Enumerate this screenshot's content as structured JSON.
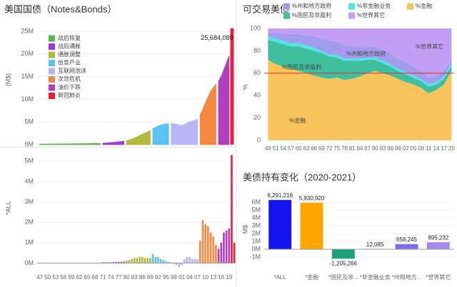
{
  "chart_data": [
    {
      "type": "area",
      "title": "美国国债（Notes&Bonds）",
      "y_label": "(M$)",
      "xlim": [
        1946,
        2021.5
      ],
      "ylim": [
        0,
        27200000
      ],
      "yticks": [
        {
          "value": 0,
          "label": "0M"
        },
        {
          "value": 5000000,
          "label": "5M"
        },
        {
          "value": 10000000,
          "label": "10M"
        },
        {
          "value": 15000000,
          "label": "15M"
        },
        {
          "value": 20000000,
          "label": "20M"
        },
        {
          "value": 25000000,
          "label": "25M"
        }
      ],
      "grid": true,
      "legend": "upper left",
      "series": [
        {
          "name": "战后恢复",
          "color": "#58b84a",
          "x": [
            1947,
            1948,
            1949,
            1950,
            1951,
            1952,
            1953,
            1954,
            1955,
            1956,
            1957,
            1958,
            1959,
            1960,
            1961,
            1962,
            1963,
            1964,
            1965,
            1966,
            1967,
            1968,
            1969,
            1970
          ],
          "values": [
            100000,
            105000,
            110000,
            115000,
            120000,
            125000,
            130000,
            135000,
            140000,
            145000,
            150000,
            155000,
            160000,
            170000,
            175000,
            180000,
            190000,
            200000,
            205000,
            210000,
            220000,
            230000,
            245000,
            260000
          ]
        },
        {
          "name": "战后通胀",
          "color": "#a03ad6",
          "x": [
            1971,
            1972,
            1973,
            1974,
            1975,
            1976,
            1977,
            1978,
            1979
          ],
          "values": [
            300000,
            340000,
            380000,
            420000,
            470000,
            530000,
            590000,
            650000,
            720000
          ]
        },
        {
          "name": "通胀调整",
          "color": "#b5b83e",
          "x": [
            1980,
            1981,
            1982,
            1983,
            1984,
            1985,
            1986,
            1987,
            1988,
            1989
          ],
          "values": [
            850000,
            1000000,
            1200000,
            1450000,
            1700000,
            2000000,
            2300000,
            2550000,
            2800000,
            3050000
          ]
        },
        {
          "name": "信息产业",
          "color": "#5cc3f0",
          "x": [
            1990,
            1991,
            1992,
            1993,
            1994,
            1995,
            1996
          ],
          "values": [
            3500000,
            3800000,
            4100000,
            4300000,
            4450000,
            4550000,
            4600000
          ]
        },
        {
          "name": "互联网泡沫",
          "color": "#b8b6f4",
          "x": [
            1997,
            1998,
            1999,
            2000,
            2001,
            2002,
            2003,
            2004,
            2005,
            2006,
            2007
          ],
          "values": [
            4650000,
            4600000,
            4500000,
            4300000,
            4200000,
            4400000,
            4700000,
            5000000,
            5200000,
            5400000,
            5600000
          ]
        },
        {
          "name": "次贷危机",
          "color": "#f58840",
          "x": [
            2008,
            2009,
            2010,
            2011,
            2012,
            2013,
            2014
          ],
          "values": [
            6500000,
            7800000,
            9200000,
            10500000,
            11700000,
            12600000,
            13300000
          ]
        },
        {
          "name": "油价下跌",
          "color": "#b23fbd",
          "x": [
            2015,
            2016,
            2017,
            2018,
            2019
          ],
          "values": [
            14000000,
            15000000,
            16500000,
            18000000,
            19600000
          ]
        },
        {
          "name": "新冠肺炎",
          "color": "#e8203c",
          "x": [
            2020
          ],
          "values": [
            25684089
          ],
          "value_labels": [
            "25,684,089"
          ]
        }
      ]
    },
    {
      "type": "bar",
      "y_label": "*ALL",
      "xlim": [
        1946,
        2021.5
      ],
      "ylim": [
        -300000,
        5500000
      ],
      "xticks": [
        {
          "value": 1947,
          "label": "47"
        },
        {
          "value": 1950,
          "label": "50"
        },
        {
          "value": 1953,
          "label": "53"
        },
        {
          "value": 1956,
          "label": "56"
        },
        {
          "value": 1959,
          "label": "59"
        },
        {
          "value": 1962,
          "label": "62"
        },
        {
          "value": 1965,
          "label": "65"
        },
        {
          "value": 1968,
          "label": "68"
        },
        {
          "value": 1971,
          "label": "71"
        },
        {
          "value": 1974,
          "label": "74"
        },
        {
          "value": 1977,
          "label": "77"
        },
        {
          "value": 1980,
          "label": "80"
        },
        {
          "value": 1983,
          "label": "83"
        },
        {
          "value": 1986,
          "label": "86"
        },
        {
          "value": 1989,
          "label": "89"
        },
        {
          "value": 1992,
          "label": "92"
        },
        {
          "value": 1995,
          "label": "95"
        },
        {
          "value": 1998,
          "label": "98"
        },
        {
          "value": 2001,
          "label": "01"
        },
        {
          "value": 2004,
          "label": "04"
        },
        {
          "value": 2007,
          "label": "07"
        },
        {
          "value": 2010,
          "label": "10"
        },
        {
          "value": 2013,
          "label": "13"
        },
        {
          "value": 2016,
          "label": "16"
        },
        {
          "value": 2019,
          "label": "19"
        }
      ],
      "yticks": [
        {
          "value": 0,
          "label": "0M"
        },
        {
          "value": 1000000,
          "label": "1M"
        },
        {
          "value": 2000000,
          "label": "2M"
        },
        {
          "value": 3000000,
          "label": "3M"
        },
        {
          "value": 4000000,
          "label": "4M"
        },
        {
          "value": 5000000,
          "label": "5M"
        }
      ],
      "grid": true,
      "series": [
        {
          "color": "#58b84a",
          "x": [
            1947,
            1948,
            1949,
            1950,
            1951,
            1952,
            1953,
            1954,
            1955,
            1956,
            1957,
            1958,
            1959,
            1960,
            1961,
            1962,
            1963,
            1964,
            1965,
            1966,
            1967,
            1968,
            1969,
            1970
          ],
          "values": [
            20000,
            5000,
            5000,
            5000,
            5000,
            5000,
            5000,
            5000,
            5000,
            5000,
            5000,
            5000,
            5000,
            10000,
            5000,
            5000,
            10000,
            10000,
            5000,
            5000,
            10000,
            10000,
            15000,
            15000
          ]
        },
        {
          "color": "#a03ad6",
          "x": [
            1971,
            1972,
            1973,
            1974,
            1975,
            1976,
            1977,
            1978,
            1979
          ],
          "values": [
            40000,
            40000,
            40000,
            40000,
            50000,
            60000,
            60000,
            60000,
            70000
          ]
        },
        {
          "color": "#b5b83e",
          "x": [
            1980,
            1981,
            1982,
            1983,
            1984,
            1985,
            1986,
            1987,
            1988,
            1989
          ],
          "values": [
            130000,
            150000,
            200000,
            250000,
            250000,
            300000,
            300000,
            250000,
            250000,
            250000
          ]
        },
        {
          "color": "#5cc3f0",
          "x": [
            1990,
            1991,
            1992,
            1993,
            1994,
            1995,
            1996
          ],
          "values": [
            450000,
            300000,
            300000,
            200000,
            150000,
            100000,
            50000
          ]
        },
        {
          "color": "#b8b6f4",
          "x": [
            1997,
            1998,
            1999,
            2000,
            2001,
            2002,
            2003,
            2004,
            2005,
            2006,
            2007
          ],
          "values": [
            50000,
            -50000,
            -100000,
            -200000,
            -100000,
            200000,
            300000,
            300000,
            200000,
            200000,
            200000
          ]
        },
        {
          "color": "#f58840",
          "x": [
            2008,
            2009,
            2010,
            2011,
            2012,
            2013,
            2014
          ],
          "values": [
            1100000,
            2100000,
            1900000,
            1800000,
            1500000,
            1300000,
            900000
          ]
        },
        {
          "color": "#b23fbd",
          "x": [
            2015,
            2016,
            2017,
            2018,
            2019
          ],
          "values": [
            700000,
            1000000,
            1500000,
            1600000,
            1700000
          ]
        },
        {
          "color": "#e8203c",
          "x": [
            2020,
            2021
          ],
          "values": [
            5300000,
            1000000
          ]
        }
      ]
    },
    {
      "type": "stacked_area",
      "title": "可交易美债",
      "y_label": "%",
      "xlim": [
        1946.5,
        2021
      ],
      "ylim": [
        0,
        100
      ],
      "ref_line": 60,
      "ref_color": "#e03030",
      "xticks": [
        {
          "value": 1948,
          "label": "48"
        },
        {
          "value": 1951,
          "label": "51"
        },
        {
          "value": 1954,
          "label": "54"
        },
        {
          "value": 1957,
          "label": "57"
        },
        {
          "value": 1960,
          "label": "60"
        },
        {
          "value": 1963,
          "label": "63"
        },
        {
          "value": 1966,
          "label": "66"
        },
        {
          "value": 1969,
          "label": "69"
        },
        {
          "value": 1972,
          "label": "72"
        },
        {
          "value": 1975,
          "label": "75"
        },
        {
          "value": 1978,
          "label": "78"
        },
        {
          "value": 1981,
          "label": "81"
        },
        {
          "value": 1984,
          "label": "84"
        },
        {
          "value": 1987,
          "label": "87"
        },
        {
          "value": 1990,
          "label": "90"
        },
        {
          "value": 1993,
          "label": "93"
        },
        {
          "value": 1996,
          "label": "96"
        },
        {
          "value": 1999,
          "label": "99"
        },
        {
          "value": 2002,
          "label": "02"
        },
        {
          "value": 2005,
          "label": "05"
        },
        {
          "value": 2008,
          "label": "08"
        },
        {
          "value": 2011,
          "label": "11"
        },
        {
          "value": 2014,
          "label": "14"
        },
        {
          "value": 2017,
          "label": "17"
        },
        {
          "value": 2020,
          "label": "20"
        }
      ],
      "yticks": [
        0,
        20,
        40,
        60,
        80,
        100
      ],
      "x": [
        1948,
        1951,
        1954,
        1957,
        1960,
        1963,
        1966,
        1969,
        1972,
        1975,
        1978,
        1981,
        1984,
        1987,
        1990,
        1993,
        1996,
        1999,
        2002,
        2005,
        2008,
        2011,
        2014,
        2017,
        2020
      ],
      "series": [
        {
          "name": "%金融",
          "color": "#f9c35c",
          "values": [
            72,
            68,
            66,
            64,
            62,
            60,
            58,
            56,
            55,
            56,
            54,
            55,
            57,
            60,
            62,
            60,
            58,
            55,
            52,
            50,
            47,
            42,
            45,
            50,
            62
          ]
        },
        {
          "name": "%国民及非盈利",
          "color": "#3fbf9e",
          "values": [
            18,
            20,
            20,
            20,
            22,
            22,
            22,
            22,
            20,
            18,
            17,
            16,
            14,
            12,
            10,
            9,
            8,
            7,
            7,
            6,
            6,
            6,
            5,
            5,
            5
          ]
        },
        {
          "name": "%非金融业务",
          "color": "#4ee6e6",
          "values": [
            3,
            3,
            3,
            3,
            3,
            3,
            3,
            2,
            2,
            2,
            2,
            2,
            2,
            2,
            2,
            2,
            2,
            2,
            2,
            2,
            2,
            2,
            2,
            2,
            2
          ]
        },
        {
          "name": "%州和地方政府",
          "color": "#a39bec",
          "values": [
            4,
            5,
            7,
            8,
            8,
            9,
            10,
            11,
            12,
            12,
            12,
            11,
            11,
            10,
            10,
            10,
            10,
            9,
            9,
            8,
            7,
            6,
            6,
            5,
            4
          ]
        },
        {
          "name": "%世界其它",
          "color": "#c29ff5",
          "values": [
            3,
            4,
            4,
            5,
            5,
            6,
            7,
            9,
            11,
            12,
            15,
            16,
            16,
            16,
            16,
            19,
            22,
            27,
            30,
            34,
            38,
            44,
            42,
            38,
            27
          ]
        }
      ]
    },
    {
      "type": "bar",
      "title": "美债持有变化（2020-2021）",
      "y_label": "M$",
      "ylim": [
        -2000000,
        7270000
      ],
      "yticks": [
        {
          "value": -1000000,
          "label": "-1M"
        },
        {
          "value": 0,
          "label": "0M"
        },
        {
          "value": 1000000,
          "label": "1M"
        },
        {
          "value": 2000000,
          "label": "2M"
        },
        {
          "value": 3000000,
          "label": "3M"
        },
        {
          "value": 4000000,
          "label": "4M"
        },
        {
          "value": 5000000,
          "label": "5M"
        },
        {
          "value": 6000000,
          "label": "6M"
        }
      ],
      "categories": [
        "*ALL",
        "*金融",
        "*国民及非...",
        "*非金融业务",
        "*州和地方...",
        "*世界其它"
      ],
      "values": [
        6291216,
        5930920,
        -1205266,
        12085,
        658245,
        895232
      ],
      "value_labels": [
        "6,291,216",
        "5,930,920",
        "-1,205,266",
        "12,085",
        "658,245",
        "895,232"
      ],
      "colors": [
        "#1414f0",
        "#ffa500",
        "#1aa37a",
        "#40e0d0",
        "#7b6cf0",
        "#a48af2"
      ]
    }
  ]
}
